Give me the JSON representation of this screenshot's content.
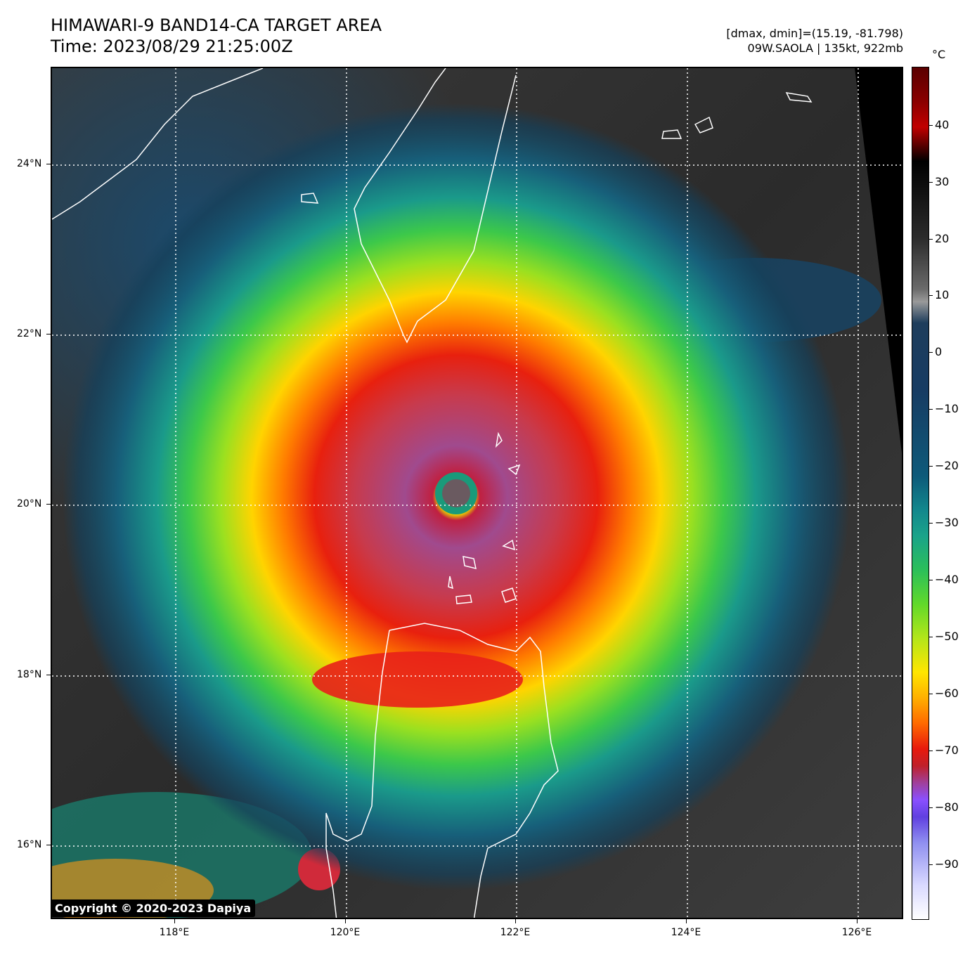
{
  "header": {
    "title": "HIMAWARI-9 BAND14-CA TARGET AREA",
    "time": "Time: 2023/08/29 21:25:00Z",
    "dminmax": "[dmax, dmin]=(15.19, -81.798)",
    "storm": "09W.SAOLA | 135kt, 922mb"
  },
  "map": {
    "lat_labels": [
      "24°N",
      "22°N",
      "20°N",
      "18°N",
      "16°N"
    ],
    "lon_labels": [
      "118°E",
      "120°E",
      "122°E",
      "124°E",
      "126°E"
    ],
    "copyright": "Copyright © 2020-2023 Dapiya"
  },
  "colorbar": {
    "unit": "°C",
    "ticks": [
      "40",
      "30",
      "20",
      "10",
      "0",
      "−10",
      "−20",
      "−30",
      "−40",
      "−50",
      "−60",
      "−70",
      "−80",
      "−90"
    ]
  },
  "colors": {
    "coastline": "#ffffff",
    "grid": "#ffffff",
    "ocean_clear": "#262626",
    "eye": "#9a5aa0"
  }
}
